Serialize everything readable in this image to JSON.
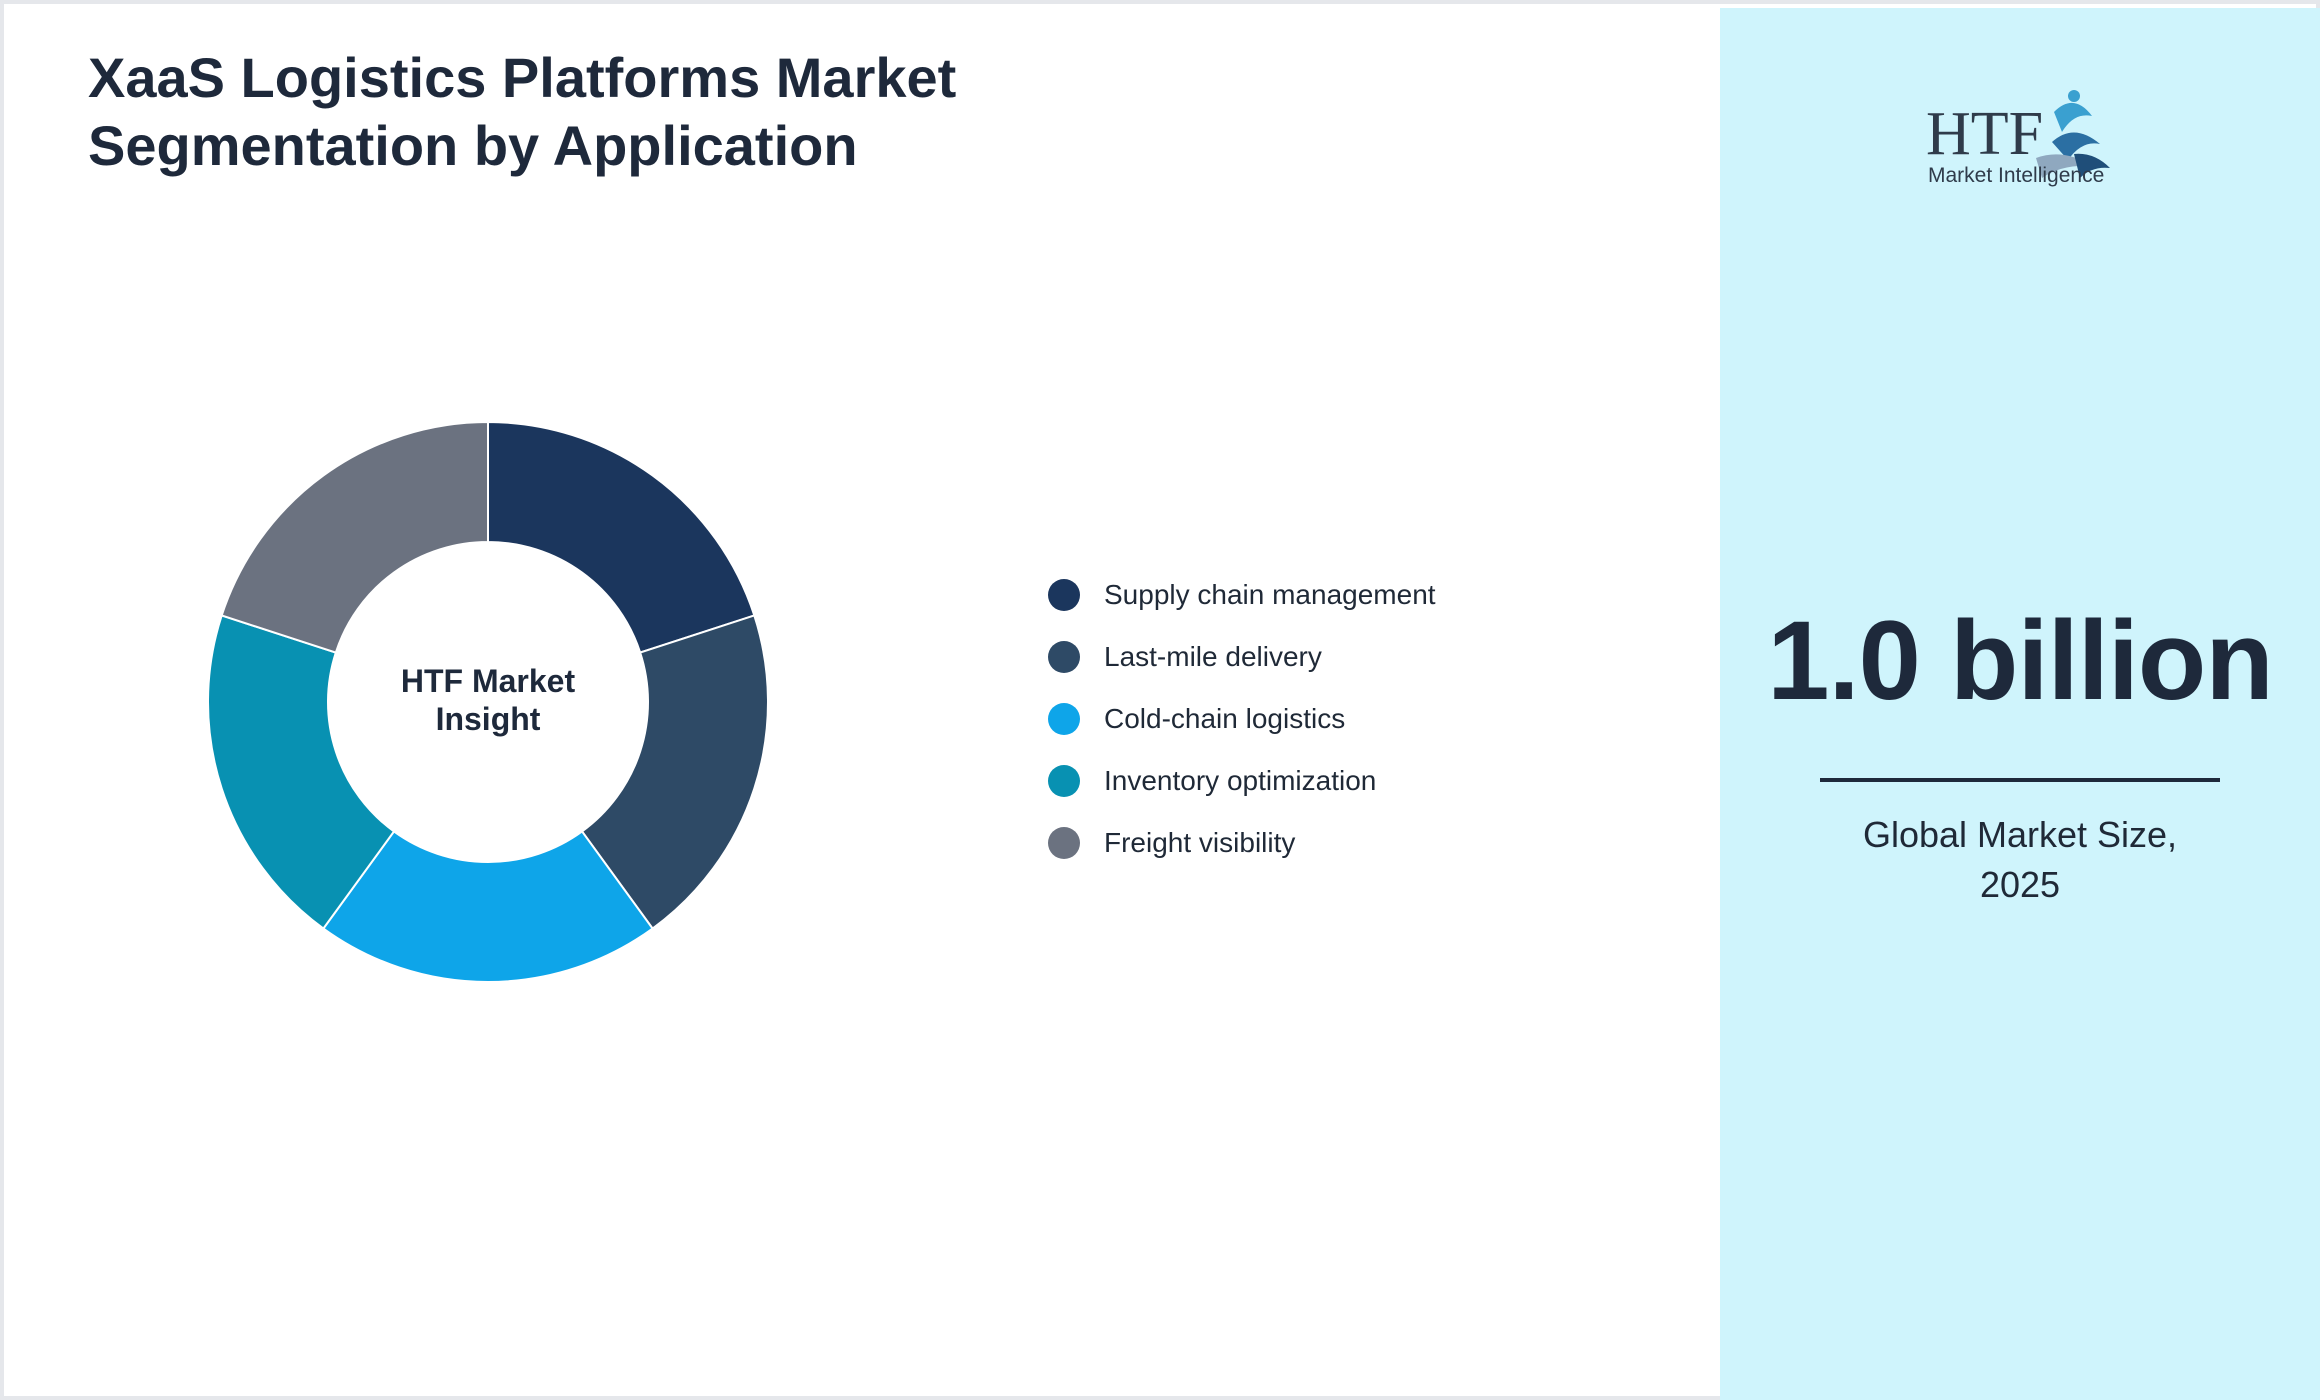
{
  "title": {
    "line1": "XaaS Logistics Platforms Market",
    "line2": "Segmentation by Application"
  },
  "chart_data": {
    "type": "pie",
    "variant": "donut",
    "categories": [
      "Supply chain management",
      "Last-mile delivery",
      "Cold-chain logistics",
      "Inventory optimization",
      "Freight visibility"
    ],
    "values": [
      20,
      20,
      20,
      20,
      20
    ],
    "colors": [
      "#1b365d",
      "#2e4a66",
      "#0ea5e9",
      "#0891b2",
      "#6b7280"
    ],
    "center_label": {
      "line1": "HTF Market",
      "line2": "Insight"
    },
    "legend_position": "right"
  },
  "side_panel": {
    "logo": {
      "icon": "htf-logo-icon",
      "mark": "HTF",
      "tagline": "Market Intelligence"
    },
    "metric_value": "1.0 billion",
    "metric_caption": {
      "line1": "Global Market Size,",
      "line2": "2025"
    },
    "background": "#cff4fc"
  }
}
